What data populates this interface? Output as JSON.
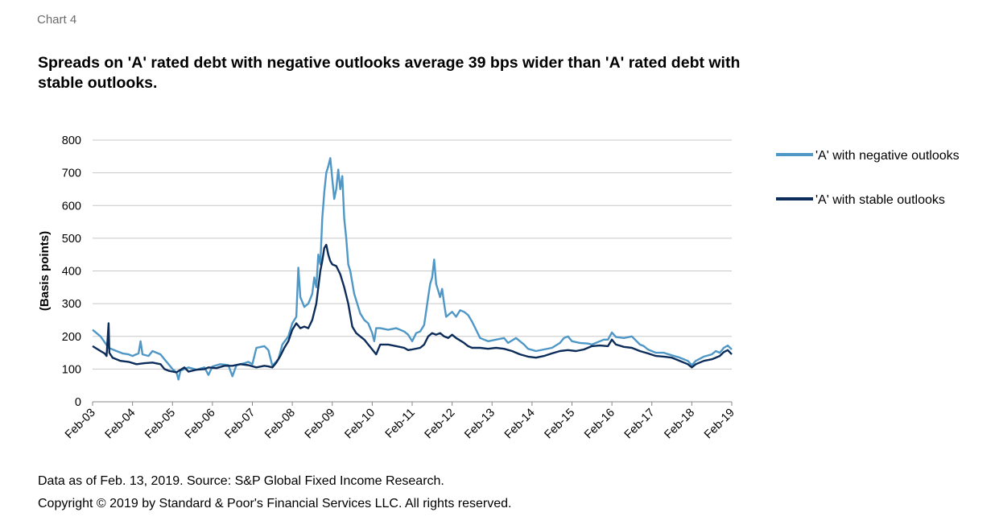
{
  "header": {
    "chart_label": "Chart 4",
    "title": "Spreads on 'A' rated debt with negative outlooks average 39 bps wider than 'A' rated debt with stable outlooks."
  },
  "footer": {
    "source": "Data as of Feb. 13, 2019. Source: S&P Global Fixed Income Research.",
    "copyright": "Copyright © 2019 by Standard & Poor's Financial Services LLC. All rights reserved."
  },
  "chart_data": {
    "type": "line",
    "title": "Spreads on 'A' rated debt with negative outlooks average 39 bps wider than 'A' rated debt with stable outlooks.",
    "xlabel": "",
    "ylabel": "(Basis points)",
    "ylim": [
      0,
      800
    ],
    "yticks": [
      0,
      100,
      200,
      300,
      400,
      500,
      600,
      700,
      800
    ],
    "xlim": [
      2003.1,
      2019.1
    ],
    "xticks": [
      {
        "x": 2003.1,
        "label": "Feb-03"
      },
      {
        "x": 2004.1,
        "label": "Feb-04"
      },
      {
        "x": 2005.1,
        "label": "Feb-05"
      },
      {
        "x": 2006.1,
        "label": "Feb-06"
      },
      {
        "x": 2007.1,
        "label": "Feb-07"
      },
      {
        "x": 2008.1,
        "label": "Feb-08"
      },
      {
        "x": 2009.1,
        "label": "Feb-09"
      },
      {
        "x": 2010.1,
        "label": "Feb-10"
      },
      {
        "x": 2011.1,
        "label": "Feb-11"
      },
      {
        "x": 2012.1,
        "label": "Feb-12"
      },
      {
        "x": 2013.1,
        "label": "Feb-13"
      },
      {
        "x": 2014.1,
        "label": "Feb-14"
      },
      {
        "x": 2015.1,
        "label": "Feb-15"
      },
      {
        "x": 2016.1,
        "label": "Feb-16"
      },
      {
        "x": 2017.1,
        "label": "Feb-17"
      },
      {
        "x": 2018.1,
        "label": "Feb-18"
      },
      {
        "x": 2019.1,
        "label": "Feb-19"
      }
    ],
    "grid": "horizontal",
    "legend_position": "right",
    "series": [
      {
        "name": "'A' with negative outlooks",
        "color": "#4f97c6",
        "points": [
          [
            2003.1,
            220
          ],
          [
            2003.3,
            200
          ],
          [
            2003.5,
            165
          ],
          [
            2003.7,
            155
          ],
          [
            2003.85,
            148
          ],
          [
            2004.0,
            145
          ],
          [
            2004.1,
            140
          ],
          [
            2004.25,
            148
          ],
          [
            2004.3,
            185
          ],
          [
            2004.35,
            145
          ],
          [
            2004.5,
            140
          ],
          [
            2004.6,
            155
          ],
          [
            2004.8,
            145
          ],
          [
            2004.9,
            130
          ],
          [
            2005.0,
            115
          ],
          [
            2005.1,
            100
          ],
          [
            2005.2,
            90
          ],
          [
            2005.25,
            68
          ],
          [
            2005.3,
            95
          ],
          [
            2005.5,
            105
          ],
          [
            2005.7,
            98
          ],
          [
            2005.9,
            105
          ],
          [
            2006.0,
            82
          ],
          [
            2006.1,
            108
          ],
          [
            2006.3,
            115
          ],
          [
            2006.5,
            112
          ],
          [
            2006.6,
            78
          ],
          [
            2006.7,
            112
          ],
          [
            2006.9,
            118
          ],
          [
            2007.0,
            122
          ],
          [
            2007.1,
            115
          ],
          [
            2007.2,
            165
          ],
          [
            2007.4,
            170
          ],
          [
            2007.5,
            158
          ],
          [
            2007.6,
            110
          ],
          [
            2007.75,
            130
          ],
          [
            2007.85,
            175
          ],
          [
            2008.0,
            200
          ],
          [
            2008.1,
            240
          ],
          [
            2008.2,
            260
          ],
          [
            2008.25,
            410
          ],
          [
            2008.3,
            320
          ],
          [
            2008.4,
            290
          ],
          [
            2008.5,
            300
          ],
          [
            2008.6,
            330
          ],
          [
            2008.65,
            380
          ],
          [
            2008.7,
            350
          ],
          [
            2008.75,
            450
          ],
          [
            2008.8,
            420
          ],
          [
            2008.85,
            560
          ],
          [
            2008.9,
            640
          ],
          [
            2008.95,
            700
          ],
          [
            2009.0,
            720
          ],
          [
            2009.05,
            745
          ],
          [
            2009.1,
            680
          ],
          [
            2009.15,
            620
          ],
          [
            2009.2,
            650
          ],
          [
            2009.25,
            710
          ],
          [
            2009.3,
            650
          ],
          [
            2009.35,
            690
          ],
          [
            2009.4,
            560
          ],
          [
            2009.45,
            500
          ],
          [
            2009.5,
            420
          ],
          [
            2009.55,
            400
          ],
          [
            2009.65,
            330
          ],
          [
            2009.8,
            270
          ],
          [
            2009.9,
            250
          ],
          [
            2010.0,
            240
          ],
          [
            2010.1,
            210
          ],
          [
            2010.15,
            185
          ],
          [
            2010.2,
            225
          ],
          [
            2010.3,
            225
          ],
          [
            2010.5,
            220
          ],
          [
            2010.7,
            225
          ],
          [
            2010.8,
            220
          ],
          [
            2010.9,
            215
          ],
          [
            2011.0,
            205
          ],
          [
            2011.1,
            185
          ],
          [
            2011.2,
            210
          ],
          [
            2011.3,
            215
          ],
          [
            2011.4,
            235
          ],
          [
            2011.5,
            320
          ],
          [
            2011.55,
            360
          ],
          [
            2011.6,
            380
          ],
          [
            2011.65,
            435
          ],
          [
            2011.7,
            360
          ],
          [
            2011.75,
            340
          ],
          [
            2011.8,
            320
          ],
          [
            2011.85,
            345
          ],
          [
            2011.9,
            300
          ],
          [
            2011.95,
            260
          ],
          [
            2012.0,
            265
          ],
          [
            2012.1,
            275
          ],
          [
            2012.2,
            260
          ],
          [
            2012.3,
            280
          ],
          [
            2012.4,
            275
          ],
          [
            2012.5,
            265
          ],
          [
            2012.6,
            245
          ],
          [
            2012.7,
            220
          ],
          [
            2012.8,
            195
          ],
          [
            2012.9,
            190
          ],
          [
            2013.0,
            185
          ],
          [
            2013.2,
            190
          ],
          [
            2013.4,
            195
          ],
          [
            2013.5,
            180
          ],
          [
            2013.7,
            195
          ],
          [
            2013.9,
            175
          ],
          [
            2014.0,
            162
          ],
          [
            2014.2,
            155
          ],
          [
            2014.4,
            160
          ],
          [
            2014.6,
            165
          ],
          [
            2014.8,
            180
          ],
          [
            2014.9,
            195
          ],
          [
            2015.0,
            200
          ],
          [
            2015.1,
            185
          ],
          [
            2015.3,
            180
          ],
          [
            2015.5,
            178
          ],
          [
            2015.6,
            175
          ],
          [
            2015.8,
            185
          ],
          [
            2015.9,
            190
          ],
          [
            2016.0,
            190
          ],
          [
            2016.1,
            212
          ],
          [
            2016.2,
            198
          ],
          [
            2016.4,
            195
          ],
          [
            2016.6,
            200
          ],
          [
            2016.8,
            175
          ],
          [
            2016.9,
            170
          ],
          [
            2017.0,
            160
          ],
          [
            2017.2,
            150
          ],
          [
            2017.4,
            150
          ],
          [
            2017.6,
            142
          ],
          [
            2017.8,
            135
          ],
          [
            2017.9,
            130
          ],
          [
            2018.0,
            125
          ],
          [
            2018.1,
            112
          ],
          [
            2018.2,
            125
          ],
          [
            2018.4,
            138
          ],
          [
            2018.6,
            145
          ],
          [
            2018.7,
            155
          ],
          [
            2018.8,
            150
          ],
          [
            2018.9,
            165
          ],
          [
            2019.0,
            172
          ],
          [
            2019.1,
            160
          ]
        ]
      },
      {
        "name": "'A' with stable outlooks",
        "color": "#0c2c5a",
        "points": [
          [
            2003.1,
            170
          ],
          [
            2003.3,
            155
          ],
          [
            2003.4,
            148
          ],
          [
            2003.45,
            140
          ],
          [
            2003.5,
            240
          ],
          [
            2003.52,
            150
          ],
          [
            2003.6,
            135
          ],
          [
            2003.8,
            125
          ],
          [
            2004.0,
            122
          ],
          [
            2004.2,
            115
          ],
          [
            2004.4,
            118
          ],
          [
            2004.6,
            120
          ],
          [
            2004.8,
            115
          ],
          [
            2004.9,
            100
          ],
          [
            2005.0,
            95
          ],
          [
            2005.2,
            90
          ],
          [
            2005.4,
            105
          ],
          [
            2005.5,
            92
          ],
          [
            2005.7,
            98
          ],
          [
            2005.9,
            100
          ],
          [
            2006.0,
            105
          ],
          [
            2006.2,
            103
          ],
          [
            2006.4,
            110
          ],
          [
            2006.6,
            110
          ],
          [
            2006.8,
            115
          ],
          [
            2007.0,
            112
          ],
          [
            2007.2,
            105
          ],
          [
            2007.4,
            110
          ],
          [
            2007.5,
            108
          ],
          [
            2007.6,
            105
          ],
          [
            2007.7,
            120
          ],
          [
            2007.8,
            140
          ],
          [
            2007.9,
            165
          ],
          [
            2008.0,
            185
          ],
          [
            2008.1,
            220
          ],
          [
            2008.2,
            240
          ],
          [
            2008.3,
            225
          ],
          [
            2008.4,
            230
          ],
          [
            2008.5,
            225
          ],
          [
            2008.6,
            250
          ],
          [
            2008.7,
            300
          ],
          [
            2008.8,
            400
          ],
          [
            2008.85,
            430
          ],
          [
            2008.9,
            470
          ],
          [
            2008.95,
            480
          ],
          [
            2009.0,
            450
          ],
          [
            2009.05,
            430
          ],
          [
            2009.1,
            420
          ],
          [
            2009.2,
            415
          ],
          [
            2009.3,
            390
          ],
          [
            2009.4,
            350
          ],
          [
            2009.5,
            300
          ],
          [
            2009.6,
            230
          ],
          [
            2009.7,
            210
          ],
          [
            2009.8,
            200
          ],
          [
            2009.9,
            190
          ],
          [
            2010.0,
            175
          ],
          [
            2010.1,
            160
          ],
          [
            2010.2,
            145
          ],
          [
            2010.3,
            175
          ],
          [
            2010.5,
            175
          ],
          [
            2010.7,
            170
          ],
          [
            2010.9,
            165
          ],
          [
            2011.0,
            158
          ],
          [
            2011.1,
            160
          ],
          [
            2011.3,
            165
          ],
          [
            2011.4,
            175
          ],
          [
            2011.5,
            200
          ],
          [
            2011.6,
            210
          ],
          [
            2011.7,
            205
          ],
          [
            2011.8,
            210
          ],
          [
            2011.9,
            200
          ],
          [
            2012.0,
            195
          ],
          [
            2012.1,
            205
          ],
          [
            2012.2,
            195
          ],
          [
            2012.4,
            180
          ],
          [
            2012.5,
            170
          ],
          [
            2012.6,
            165
          ],
          [
            2012.8,
            165
          ],
          [
            2013.0,
            162
          ],
          [
            2013.2,
            165
          ],
          [
            2013.4,
            162
          ],
          [
            2013.6,
            155
          ],
          [
            2013.8,
            145
          ],
          [
            2014.0,
            138
          ],
          [
            2014.2,
            135
          ],
          [
            2014.4,
            140
          ],
          [
            2014.6,
            148
          ],
          [
            2014.8,
            155
          ],
          [
            2015.0,
            158
          ],
          [
            2015.2,
            155
          ],
          [
            2015.4,
            160
          ],
          [
            2015.6,
            170
          ],
          [
            2015.8,
            172
          ],
          [
            2016.0,
            170
          ],
          [
            2016.1,
            190
          ],
          [
            2016.2,
            175
          ],
          [
            2016.4,
            168
          ],
          [
            2016.6,
            165
          ],
          [
            2016.8,
            155
          ],
          [
            2017.0,
            148
          ],
          [
            2017.2,
            140
          ],
          [
            2017.4,
            138
          ],
          [
            2017.6,
            135
          ],
          [
            2017.8,
            125
          ],
          [
            2018.0,
            115
          ],
          [
            2018.1,
            105
          ],
          [
            2018.2,
            115
          ],
          [
            2018.4,
            125
          ],
          [
            2018.6,
            130
          ],
          [
            2018.7,
            135
          ],
          [
            2018.8,
            140
          ],
          [
            2018.9,
            152
          ],
          [
            2019.0,
            158
          ],
          [
            2019.1,
            145
          ]
        ]
      }
    ]
  }
}
